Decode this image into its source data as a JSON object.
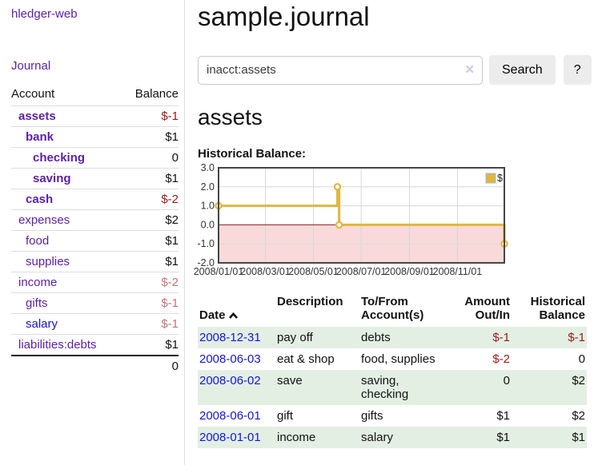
{
  "colors": {
    "accent_purple": "#5b1fa8",
    "link_blue": "#1414dd",
    "negative_red": "#9a1a1a",
    "faded_negative_red": "#c27676",
    "row_stripe_green": "#e3efe3",
    "chart_gold": "#e0b63e"
  },
  "icons": {
    "clear_search": "✕",
    "sort_ascending": "chevron-up"
  },
  "sidebar": {
    "brand": "hledger-web",
    "journal_link": "Journal",
    "account_header": "Account",
    "balance_header": "Balance",
    "accounts": [
      {
        "name": "assets",
        "indent": 1,
        "bold": true,
        "balance": "$-1",
        "balance_style": "neg"
      },
      {
        "name": "bank",
        "indent": 2,
        "bold": true,
        "balance": "$1"
      },
      {
        "name": "checking",
        "indent": 3,
        "bold": true,
        "balance": "0"
      },
      {
        "name": "saving",
        "indent": 3,
        "bold": true,
        "balance": "$1"
      },
      {
        "name": "cash",
        "indent": 2,
        "bold": true,
        "balance": "$-2",
        "balance_style": "neg"
      },
      {
        "name": "expenses",
        "indent": 1,
        "bold": false,
        "balance": "$2"
      },
      {
        "name": "food",
        "indent": 2,
        "bold": false,
        "balance": "$1"
      },
      {
        "name": "supplies",
        "indent": 2,
        "bold": false,
        "balance": "$1"
      },
      {
        "name": "income",
        "indent": 1,
        "bold": false,
        "balance": "$-2",
        "balance_style": "negfaded"
      },
      {
        "name": "gifts",
        "indent": 2,
        "bold": false,
        "balance": "$-1",
        "balance_style": "negfaded"
      },
      {
        "name": "salary",
        "indent": 2,
        "bold": false,
        "balance": "$-1",
        "balance_style": "negfaded",
        "link_style": "unvisited"
      },
      {
        "name": "liabilities:debts",
        "indent": 1,
        "bold": false,
        "balance": "$1"
      }
    ],
    "total": "0"
  },
  "main": {
    "title": "sample.journal",
    "account_heading": "assets",
    "chart_label": "Historical Balance:"
  },
  "search": {
    "value": "inacct:assets",
    "button_label": "Search",
    "help_label": "?",
    "clear_icon": "✕"
  },
  "chart_data": {
    "type": "line",
    "step": true,
    "title": "Historical Balance",
    "ylim": [
      -2,
      3
    ],
    "yticks": [
      3,
      2,
      1,
      0,
      -1,
      -2
    ],
    "xticks": [
      {
        "label": "2008/01/01",
        "pos": 0.0
      },
      {
        "label": "2008/03/01",
        "pos": 0.164
      },
      {
        "label": "2008/05/01",
        "pos": 0.332
      },
      {
        "label": "2008/07/01",
        "pos": 0.499
      },
      {
        "label": "2008/09/01",
        "pos": 0.668
      },
      {
        "label": "2008/11/01",
        "pos": 0.836
      }
    ],
    "series": [
      {
        "name": "$",
        "color": "#e0b63e",
        "points": [
          {
            "date": "2008-01-01",
            "pos": 0.0,
            "value": 1
          },
          {
            "date": "2008-06-01",
            "pos": 0.416,
            "value": 2
          },
          {
            "date": "2008-06-03",
            "pos": 0.422,
            "value": 0
          },
          {
            "date": "2008-12-31",
            "pos": 1.0,
            "value": -1
          }
        ]
      }
    ],
    "legend_position": "top-right",
    "grid": true,
    "negative_region_color": "#f9d9d9",
    "zero_line_color": "#8b1c1c"
  },
  "register": {
    "headers": {
      "date": "Date",
      "description": "Description",
      "account": "To/From\nAccount(s)",
      "amount": "Amount\nOut/In",
      "balance": "Historical\nBalance"
    },
    "rows": [
      {
        "date": "2008-12-31",
        "description": "pay off",
        "account": "debts",
        "amount": "$-1",
        "balance": "$-1",
        "amount_neg": true,
        "balance_neg": true
      },
      {
        "date": "2008-06-03",
        "description": "eat & shop",
        "account": "food, supplies",
        "amount": "$-2",
        "balance": "0",
        "amount_neg": true,
        "balance_neg": false
      },
      {
        "date": "2008-06-02",
        "description": "save",
        "account": "saving, checking",
        "amount": "0",
        "balance": "$2",
        "amount_neg": false,
        "balance_neg": false
      },
      {
        "date": "2008-06-01",
        "description": "gift",
        "account": "gifts",
        "amount": "$1",
        "balance": "$2",
        "amount_neg": false,
        "balance_neg": false
      },
      {
        "date": "2008-01-01",
        "description": "income",
        "account": "salary",
        "amount": "$1",
        "balance": "$1",
        "amount_neg": false,
        "balance_neg": false
      }
    ]
  }
}
